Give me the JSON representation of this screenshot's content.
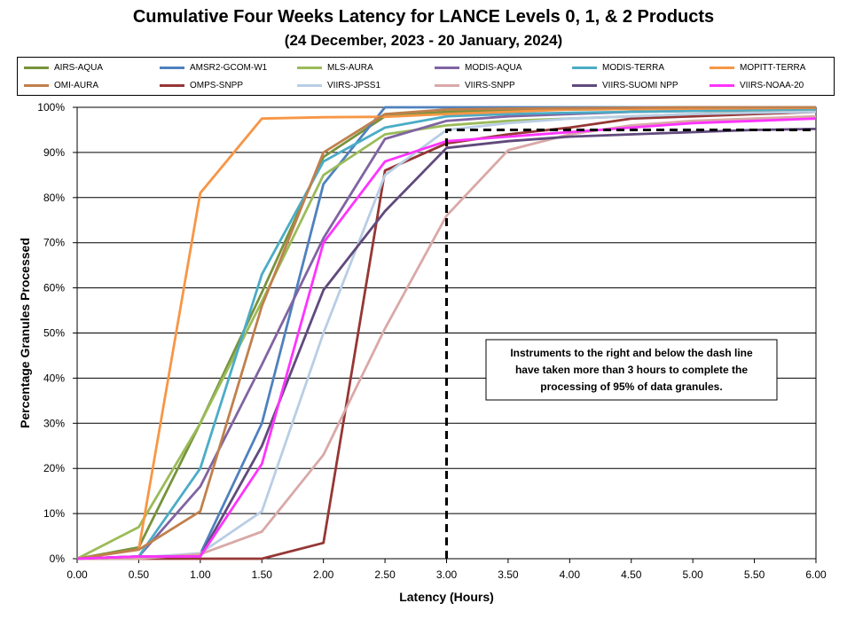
{
  "chart_data": {
    "type": "line",
    "title": "Cumulative Four Weeks Latency  for LANCE Levels 0, 1, & 2 Products",
    "subtitle": "(24 December, 2023  -  20 January, 2024)",
    "xlabel": "Latency (Hours)",
    "ylabel": "Percentage Granules Processed",
    "xlim": [
      0,
      6
    ],
    "ylim": [
      0,
      100
    ],
    "x_ticks": [
      "0.00",
      "0.50",
      "1.00",
      "1.50",
      "2.00",
      "2.50",
      "3.00",
      "3.50",
      "4.00",
      "4.50",
      "5.00",
      "5.50",
      "6.00"
    ],
    "y_ticks": [
      "0%",
      "10%",
      "20%",
      "30%",
      "40%",
      "50%",
      "60%",
      "70%",
      "80%",
      "90%",
      "100%"
    ],
    "grid": "horizontal",
    "legend_position": "top",
    "annotation": "Instruments to the right and below the dash line have taken more than 3 hours to complete the processing of 95% of data granules.",
    "threshold": {
      "x": 3.0,
      "y": 95
    },
    "x": [
      0,
      0.5,
      1.0,
      1.5,
      2.0,
      2.5,
      3.0,
      3.5,
      4.0,
      4.5,
      5.0,
      5.5,
      6.0
    ],
    "series": [
      {
        "name": "AIRS-AQUA",
        "color": "#77933C",
        "values": [
          0,
          2.5,
          30,
          59,
          89,
          98,
          99,
          99.3,
          99.5,
          99.6,
          99.7,
          99.8,
          99.9
        ]
      },
      {
        "name": "AMSR2-GCOM-W1",
        "color": "#4F81BD",
        "values": [
          0,
          0.3,
          1,
          30,
          83,
          100,
          100,
          100,
          100,
          100,
          100,
          100,
          100
        ]
      },
      {
        "name": "MLS-AURA",
        "color": "#9BBB59",
        "values": [
          0,
          7,
          30,
          57,
          85,
          94,
          96,
          97,
          97.5,
          98,
          98.5,
          99,
          99.5
        ]
      },
      {
        "name": "MODIS-AQUA",
        "color": "#8064A2",
        "values": [
          0,
          0.5,
          16,
          43,
          71,
          93,
          97,
          98,
          98.5,
          99,
          99.2,
          99.4,
          99.6
        ]
      },
      {
        "name": "MODIS-TERRA",
        "color": "#4BACC6",
        "values": [
          0,
          0.5,
          20,
          63,
          88,
          95.5,
          98,
          98.5,
          98.8,
          99,
          99.2,
          99.4,
          99.6
        ]
      },
      {
        "name": "MOPITT-TERRA",
        "color": "#F79646",
        "values": [
          0,
          2,
          81,
          97.5,
          97.8,
          97.9,
          98.5,
          99,
          99.5,
          99.6,
          99.7,
          99.8,
          99.9
        ]
      },
      {
        "name": "OMI-AURA",
        "color": "#C0804D",
        "values": [
          0,
          2,
          10.5,
          56,
          90,
          98.5,
          99.5,
          99.7,
          99.8,
          99.9,
          100,
          100,
          100
        ]
      },
      {
        "name": "OMPS-SNPP",
        "color": "#953735",
        "values": [
          0,
          0,
          0,
          0,
          3.5,
          86,
          92,
          94,
          95.5,
          97.5,
          98,
          98.5,
          99
        ]
      },
      {
        "name": "VIIRS-JPSS1",
        "color": "#B9CDE5",
        "values": [
          0,
          0.3,
          1.2,
          10.5,
          50,
          85,
          95,
          96.5,
          97.5,
          98,
          98.5,
          98.8,
          99
        ]
      },
      {
        "name": "VIIRS-SNPP",
        "color": "#D9A9A7",
        "values": [
          0,
          0,
          1,
          6,
          23,
          51,
          76,
          90.5,
          94,
          96,
          97,
          97.5,
          98
        ]
      },
      {
        "name": "VIIRS-SUOMI NPP",
        "color": "#604A7B",
        "values": [
          0,
          0.5,
          0.5,
          25,
          59.5,
          77,
          91,
          92.5,
          93.5,
          94,
          94.5,
          95,
          95.2
        ]
      },
      {
        "name": "VIIRS-NOAA-20",
        "color": "#FF33FF",
        "values": [
          0,
          0.5,
          0.5,
          21,
          70,
          88,
          92.5,
          93.5,
          94.5,
          95.5,
          96.5,
          97,
          97.5
        ]
      }
    ]
  }
}
